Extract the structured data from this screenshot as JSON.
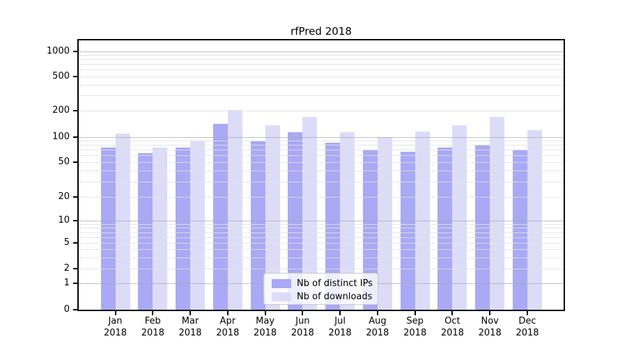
{
  "chart_data": {
    "type": "bar",
    "title": "rfPred 2018",
    "categories": [
      "Jan",
      "Feb",
      "Mar",
      "Apr",
      "May",
      "Jun",
      "Jul",
      "Aug",
      "Sep",
      "Oct",
      "Nov",
      "Dec"
    ],
    "category_year": "2018",
    "series": [
      {
        "name": "Nb of distinct IPs",
        "values": [
          74,
          64,
          75,
          140,
          89,
          112,
          85,
          71,
          67,
          75,
          80,
          71
        ]
      },
      {
        "name": "Nb of downloads",
        "values": [
          108,
          75,
          88,
          205,
          137,
          170,
          113,
          99,
          114,
          137,
          168,
          119
        ]
      }
    ],
    "colors": {
      "distinct_ips": "#a9a9f5",
      "downloads": "#dcdcf9"
    },
    "yaxis": {
      "scale": "symlog",
      "tick_labels": [
        "0",
        "1",
        "2",
        "5",
        "10",
        "20",
        "50",
        "100",
        "200",
        "500",
        "1000"
      ],
      "tick_values": [
        0,
        1,
        2,
        5,
        10,
        20,
        50,
        100,
        200,
        500,
        1000
      ],
      "major_grid_values": [
        1,
        10,
        100,
        1000
      ],
      "minor_grid_values": [
        2,
        3,
        4,
        5,
        6,
        7,
        8,
        9,
        20,
        30,
        40,
        50,
        60,
        70,
        80,
        90,
        200,
        300,
        400,
        500,
        600,
        700,
        800,
        900
      ],
      "ylim": [
        0,
        1000
      ]
    },
    "grid": "on",
    "legend_position": "bottom-center"
  }
}
